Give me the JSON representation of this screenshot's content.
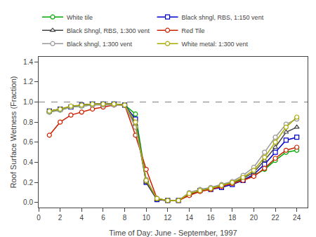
{
  "chart_data": {
    "type": "line",
    "x_label": "Time of Day: June - September, 1997",
    "y_label": "Roof Surface Wetness (Fraction)",
    "xlim": [
      0,
      25
    ],
    "ylim": [
      -0.05,
      1.45
    ],
    "xticks": [
      0,
      2,
      4,
      6,
      8,
      10,
      12,
      14,
      16,
      18,
      20,
      22,
      24
    ],
    "yticks": [
      {
        "value": 0.0,
        "label": "0.0"
      },
      0.2,
      0.4,
      0.6,
      0.8,
      {
        "value": 1.0,
        "label": "1.0"
      },
      1.2,
      1.4
    ],
    "reference_line": 1.0,
    "grid": false,
    "legend": "top",
    "x": [
      1,
      2,
      3,
      4,
      5,
      6,
      7,
      8,
      9,
      10,
      11,
      12,
      13,
      14,
      15,
      16,
      17,
      18,
      19,
      20,
      21,
      22,
      23,
      24
    ],
    "series": [
      {
        "name": "White tile",
        "color": "#00aa00",
        "marker": "circle",
        "values": [
          0.9,
          0.92,
          0.95,
          0.96,
          0.97,
          0.98,
          0.98,
          0.97,
          0.88,
          0.22,
          0.03,
          0.02,
          0.02,
          0.08,
          0.12,
          0.14,
          0.17,
          0.2,
          0.23,
          0.27,
          0.33,
          0.42,
          0.5,
          0.52
        ]
      },
      {
        "name": "Black shngl, RBS, 1:150 vent",
        "color": "#0000cc",
        "marker": "square",
        "values": [
          0.91,
          0.93,
          0.95,
          0.97,
          0.98,
          0.98,
          0.98,
          0.97,
          0.83,
          0.2,
          0.03,
          0.02,
          0.02,
          0.08,
          0.12,
          0.13,
          0.15,
          0.18,
          0.22,
          0.28,
          0.38,
          0.5,
          0.62,
          0.65
        ]
      },
      {
        "name": "Black Shngl, RBS, 1:300 vent",
        "color": "#444444",
        "marker": "triangle-up",
        "values": [
          0.91,
          0.93,
          0.95,
          0.97,
          0.98,
          0.98,
          0.98,
          0.97,
          0.78,
          0.2,
          0.03,
          0.02,
          0.02,
          0.08,
          0.12,
          0.14,
          0.17,
          0.2,
          0.24,
          0.3,
          0.42,
          0.55,
          0.7,
          0.75
        ]
      },
      {
        "name": "Red Tile",
        "color": "#cc2200",
        "marker": "circle",
        "values": [
          0.67,
          0.8,
          0.87,
          0.9,
          0.93,
          0.95,
          0.97,
          0.97,
          0.67,
          0.33,
          0.04,
          0.02,
          0.02,
          0.07,
          0.11,
          0.13,
          0.16,
          0.19,
          0.22,
          0.26,
          0.34,
          0.44,
          0.52,
          0.55
        ]
      },
      {
        "name": "Black shngl, 1:300 vent",
        "color": "#999999",
        "marker": "circle",
        "values": [
          0.9,
          0.92,
          0.95,
          0.96,
          0.97,
          0.97,
          0.97,
          0.97,
          0.75,
          0.23,
          0.04,
          0.02,
          0.02,
          0.1,
          0.13,
          0.15,
          0.18,
          0.21,
          0.27,
          0.35,
          0.5,
          0.65,
          0.78,
          0.83
        ]
      },
      {
        "name": "White metal: 1:300 vent",
        "color": "#aaaa00",
        "marker": "circle",
        "values": [
          0.91,
          0.93,
          0.96,
          0.97,
          0.98,
          0.98,
          0.98,
          0.97,
          0.8,
          0.22,
          0.04,
          0.02,
          0.02,
          0.09,
          0.12,
          0.14,
          0.17,
          0.2,
          0.25,
          0.32,
          0.45,
          0.6,
          0.75,
          0.85
        ]
      }
    ]
  }
}
